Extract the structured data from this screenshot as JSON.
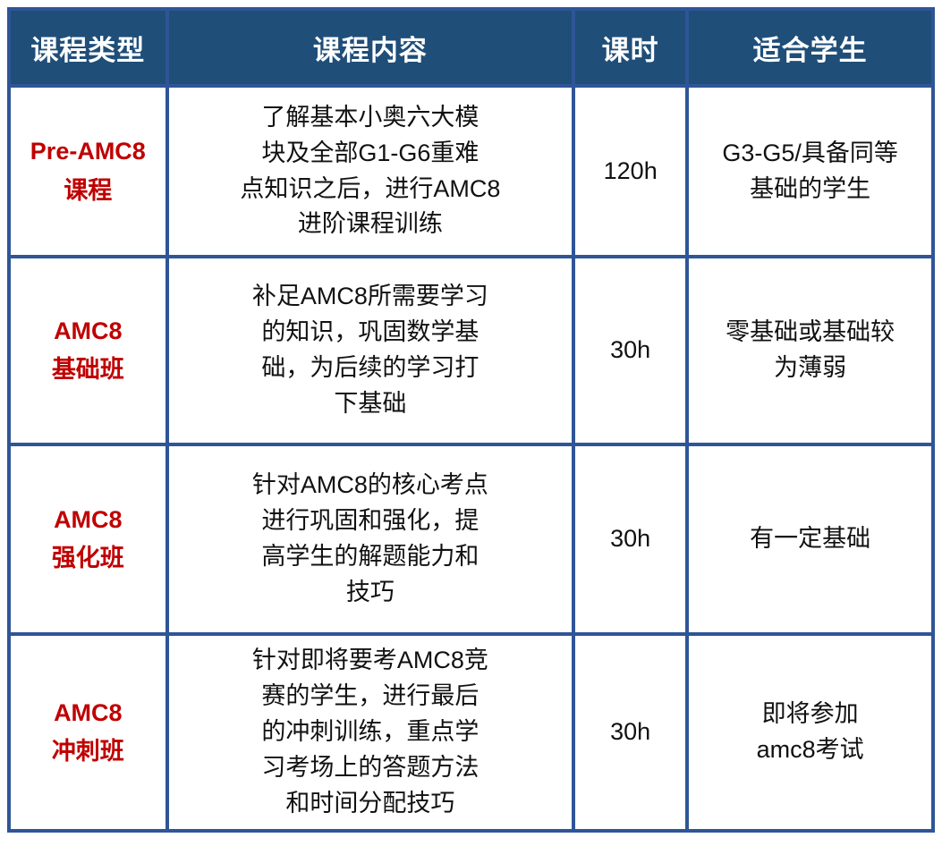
{
  "table": {
    "headers": [
      "课程类型",
      "课程内容",
      "课时",
      "适合学生"
    ],
    "rows": [
      {
        "type": "Pre-AMC8\n课程",
        "content": "了解基本小奥六大模\n块及全部G1-G6重难\n点知识之后，进行AMC8\n进阶课程训练",
        "hours": "120h",
        "students": "G3-G5/具备同等\n基础的学生"
      },
      {
        "type": "AMC8\n基础班",
        "content": "补足AMC8所需要学习\n的知识，巩固数学基\n础，为后续的学习打\n下基础",
        "hours": "30h",
        "students": "零基础或基础较\n为薄弱"
      },
      {
        "type": "AMC8\n强化班",
        "content": "针对AMC8的核心考点\n进行巩固和强化，提\n高学生的解题能力和\n技巧",
        "hours": "30h",
        "students": "有一定基础"
      },
      {
        "type": "AMC8\n冲刺班",
        "content": "针对即将要考AMC8竞\n赛的学生，进行最后\n的冲刺训练，重点学\n习考场上的答题方法\n和时间分配技巧",
        "hours": "30h",
        "students": "即将参加\namc8考试"
      }
    ],
    "colors": {
      "header_bg": "#1F4E79",
      "header_text": "#FFFFFF",
      "border": "#2F5597",
      "course_type_text": "#C00000",
      "body_text": "#111111"
    }
  }
}
